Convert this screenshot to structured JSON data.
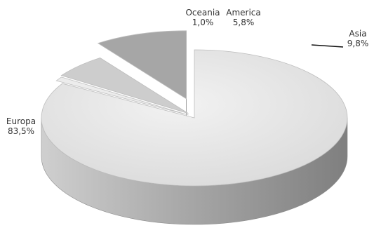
{
  "chart_data": {
    "type": "pie",
    "style": "3d-exploded",
    "title": "",
    "legend": "none",
    "slices": [
      {
        "label": "Europa",
        "value_label": "83,5%",
        "value": 83.5,
        "color": "#e4e4e4"
      },
      {
        "label": "Oceania",
        "value_label": "1,0%",
        "value": 1.0,
        "color": "#ececec"
      },
      {
        "label": "America",
        "value_label": "5,8%",
        "value": 5.8,
        "color": "#cdcdcd"
      },
      {
        "label": "Asia",
        "value_label": "9,8%",
        "value": 9.8,
        "color": "#a6a6a6"
      }
    ]
  }
}
